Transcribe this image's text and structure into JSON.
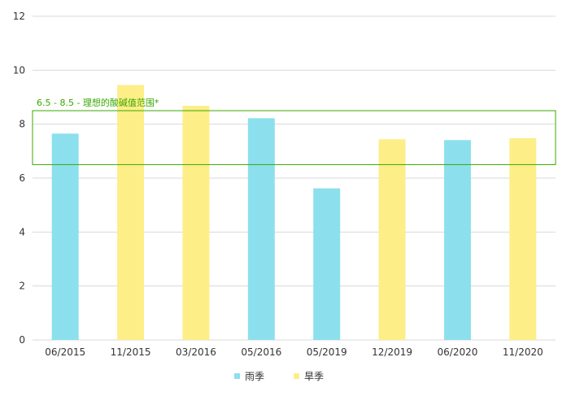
{
  "chart_data": {
    "type": "bar",
    "categories": [
      "06/2015",
      "11/2015",
      "03/2016",
      "05/2016",
      "05/2019",
      "12/2019",
      "06/2020",
      "11/2020"
    ],
    "values": [
      7.65,
      9.45,
      8.68,
      8.22,
      5.62,
      7.44,
      7.41,
      7.48
    ],
    "season_index": [
      0,
      1,
      1,
      0,
      0,
      1,
      0,
      1
    ],
    "series": [
      {
        "name": "雨季",
        "color": "#8ce0ed"
      },
      {
        "name": "旱季",
        "color": "#fdee88"
      }
    ],
    "ylim": [
      0,
      12
    ],
    "yticks": [
      0,
      2,
      4,
      6,
      8,
      10,
      12
    ],
    "grid": true,
    "legend_position": "bottom-center",
    "band": {
      "from": 6.5,
      "to": 8.5,
      "label": "6.5 - 8.5 - 理想的酸碱值范围*",
      "color": "#38a800"
    },
    "title": "",
    "xlabel": "",
    "ylabel": ""
  }
}
